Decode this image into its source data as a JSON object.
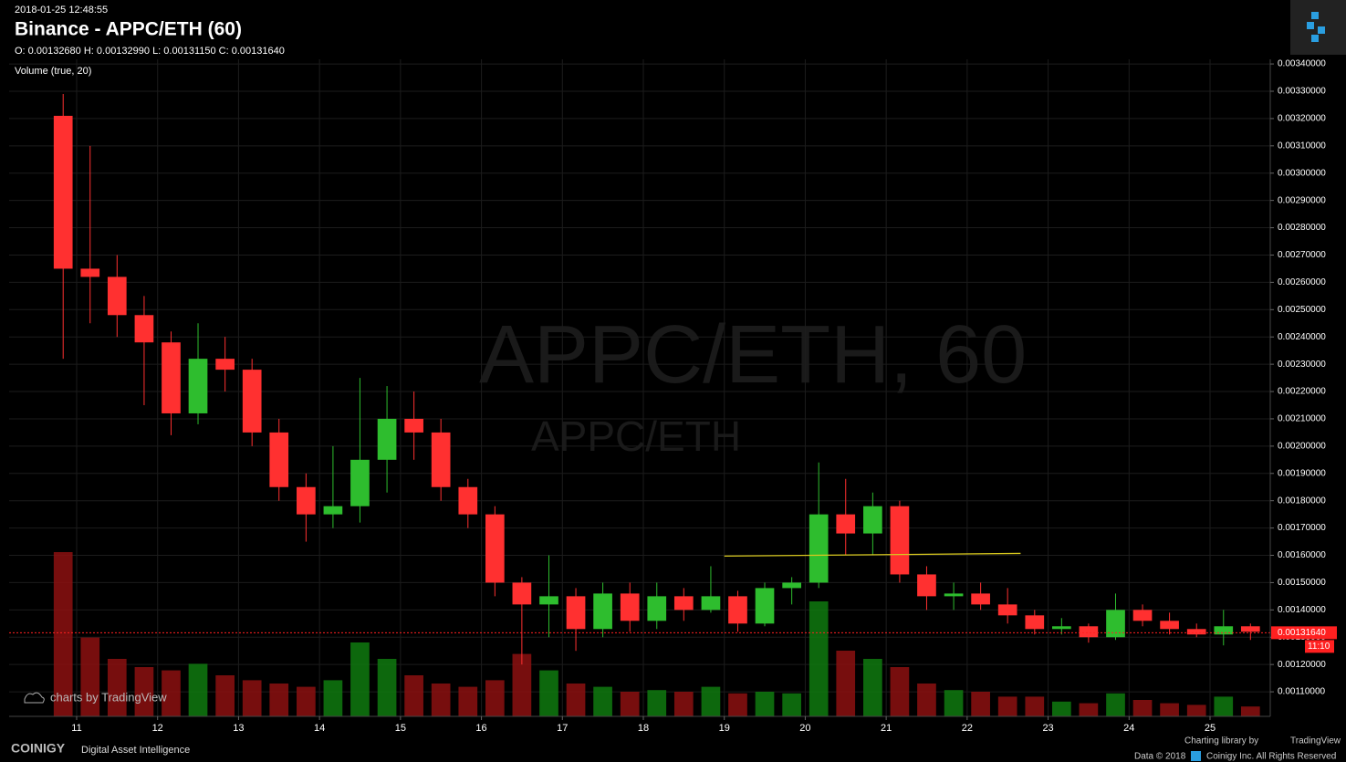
{
  "header": {
    "timestamp": "2018-01-25 12:48:55",
    "title": "Binance - APPC/ETH (60)",
    "ohlc": "O: 0.00132680 H: 0.00132990 L: 0.00131150 C: 0.00131640",
    "volume_label": "Volume (true, 20)"
  },
  "watermark": {
    "main": "APPC/ETH, 60",
    "sub": "APPC/ETH"
  },
  "footer": {
    "tv_badge": "charts by TradingView",
    "brand": "COINIGY",
    "tagline": "Digital Asset Intelligence",
    "charting": "Charting library by",
    "tv": "TradingView",
    "data": "Data © 2018",
    "rights": "Coinigy Inc. All Rights Reserved"
  },
  "chart_data": {
    "type": "candlestick",
    "x": [
      10.667,
      11.0,
      11.333,
      11.667,
      12.0,
      12.333,
      12.667,
      13.0,
      13.333,
      13.667,
      14.0,
      14.333,
      14.667,
      15.0,
      15.333,
      15.667,
      16.0,
      16.333,
      16.667,
      17.0,
      17.333,
      17.667,
      18.0,
      18.333,
      18.667,
      19.0,
      19.333,
      19.667,
      20.0,
      20.333,
      20.667,
      21.0,
      21.333,
      21.667,
      22.0,
      22.333,
      22.667,
      23.0,
      23.333,
      23.667,
      24.0,
      24.333,
      24.667,
      25.0,
      25.333
    ],
    "open": [
      0.00321,
      0.00265,
      0.00262,
      0.00248,
      0.00238,
      0.00212,
      0.00232,
      0.00228,
      0.00205,
      0.00185,
      0.00175,
      0.00178,
      0.00195,
      0.0021,
      0.00205,
      0.00185,
      0.00175,
      0.0015,
      0.00142,
      0.00145,
      0.00133,
      0.00146,
      0.00136,
      0.00145,
      0.0014,
      0.00145,
      0.00135,
      0.00148,
      0.0015,
      0.00175,
      0.00168,
      0.00178,
      0.00153,
      0.00145,
      0.00146,
      0.00142,
      0.00138,
      0.00133,
      0.00134,
      0.0013,
      0.0014,
      0.00136,
      0.00133,
      0.00131,
      0.00134
    ],
    "high": [
      0.00329,
      0.0031,
      0.0027,
      0.00255,
      0.00242,
      0.00245,
      0.0024,
      0.00232,
      0.0021,
      0.0019,
      0.002,
      0.00225,
      0.00222,
      0.0022,
      0.0021,
      0.00188,
      0.00178,
      0.00152,
      0.0016,
      0.00148,
      0.0015,
      0.0015,
      0.0015,
      0.00148,
      0.00156,
      0.00147,
      0.0015,
      0.00152,
      0.00194,
      0.00188,
      0.00183,
      0.0018,
      0.00156,
      0.0015,
      0.0015,
      0.00148,
      0.0014,
      0.00137,
      0.00135,
      0.00146,
      0.00142,
      0.00139,
      0.00135,
      0.0014,
      0.00135
    ],
    "low": [
      0.00232,
      0.00245,
      0.0024,
      0.00215,
      0.00204,
      0.00208,
      0.0022,
      0.002,
      0.0018,
      0.00165,
      0.0017,
      0.00172,
      0.00183,
      0.00195,
      0.0018,
      0.0017,
      0.00145,
      0.0012,
      0.0013,
      0.00125,
      0.0013,
      0.00132,
      0.00133,
      0.00136,
      0.00139,
      0.00132,
      0.00134,
      0.00142,
      0.00148,
      0.0016,
      0.0016,
      0.0015,
      0.0014,
      0.0014,
      0.0014,
      0.00135,
      0.00131,
      0.00131,
      0.00128,
      0.00129,
      0.00134,
      0.00131,
      0.0013,
      0.00127,
      0.00129
    ],
    "close": [
      0.00265,
      0.00262,
      0.00248,
      0.00238,
      0.00212,
      0.00232,
      0.00228,
      0.00205,
      0.00185,
      0.00175,
      0.00178,
      0.00195,
      0.0021,
      0.00205,
      0.00185,
      0.00175,
      0.0015,
      0.00142,
      0.00145,
      0.00133,
      0.00146,
      0.00136,
      0.00145,
      0.0014,
      0.00145,
      0.00135,
      0.00148,
      0.0015,
      0.00175,
      0.00168,
      0.00178,
      0.00153,
      0.00145,
      0.00146,
      0.00142,
      0.00138,
      0.00133,
      0.00134,
      0.0013,
      0.0014,
      0.00136,
      0.00133,
      0.00131,
      0.00134,
      0.00132
    ],
    "volume": [
      100,
      48,
      35,
      30,
      28,
      32,
      25,
      22,
      20,
      18,
      22,
      45,
      35,
      25,
      20,
      18,
      22,
      38,
      28,
      20,
      18,
      15,
      16,
      15,
      18,
      14,
      15,
      14,
      70,
      40,
      35,
      30,
      20,
      16,
      15,
      12,
      12,
      9,
      8,
      14,
      10,
      8,
      7,
      12,
      6
    ],
    "up_color": "#2ebd2e",
    "down_color": "#ff3030",
    "up_volume_color": "#0f7a0f",
    "down_volume_color": "#8c1010",
    "xlim": [
      10.166,
      25.744
    ],
    "xticks": [
      {
        "value": 11,
        "label": "11"
      },
      {
        "value": 12,
        "label": "12"
      },
      {
        "value": 13,
        "label": "13"
      },
      {
        "value": 14,
        "label": "14"
      },
      {
        "value": 15,
        "label": "15"
      },
      {
        "value": 16,
        "label": "16"
      },
      {
        "value": 17,
        "label": "17"
      },
      {
        "value": 18,
        "label": "18"
      },
      {
        "value": 19,
        "label": "19"
      },
      {
        "value": 20,
        "label": "20"
      },
      {
        "value": 21,
        "label": "21"
      },
      {
        "value": 22,
        "label": "22"
      },
      {
        "value": 23,
        "label": "23"
      },
      {
        "value": 24,
        "label": "24"
      },
      {
        "value": 25,
        "label": "25"
      }
    ],
    "ylim": [
      0.00101,
      0.003417
    ],
    "yticks": [
      {
        "value": 0.0011,
        "label": "0.00110000"
      },
      {
        "value": 0.0012,
        "label": "0.00120000"
      },
      {
        "value": 0.0013,
        "label": "0.00130000"
      },
      {
        "value": 0.0014,
        "label": "0.00140000"
      },
      {
        "value": 0.0015,
        "label": "0.00150000"
      },
      {
        "value": 0.0016,
        "label": "0.00160000"
      },
      {
        "value": 0.0017,
        "label": "0.00170000"
      },
      {
        "value": 0.0018,
        "label": "0.00180000"
      },
      {
        "value": 0.0019,
        "label": "0.00190000"
      },
      {
        "value": 0.002,
        "label": "0.00200000"
      },
      {
        "value": 0.0021,
        "label": "0.00210000"
      },
      {
        "value": 0.0022,
        "label": "0.00220000"
      },
      {
        "value": 0.0023,
        "label": "0.00230000"
      },
      {
        "value": 0.0024,
        "label": "0.00240000"
      },
      {
        "value": 0.0025,
        "label": "0.00250000"
      },
      {
        "value": 0.0026,
        "label": "0.00260000"
      },
      {
        "value": 0.0027,
        "label": "0.00270000"
      },
      {
        "value": 0.0028,
        "label": "0.00280000"
      },
      {
        "value": 0.0029,
        "label": "0.00290000"
      },
      {
        "value": 0.003,
        "label": "0.00300000"
      },
      {
        "value": 0.0031,
        "label": "0.00310000"
      },
      {
        "value": 0.0032,
        "label": "0.00320000"
      },
      {
        "value": 0.0033,
        "label": "0.00330000"
      },
      {
        "value": 0.0034,
        "label": "0.00340000"
      }
    ],
    "grid": true,
    "trendline": {
      "x": [
        19.0,
        22.66
      ],
      "y": [
        0.001597,
        0.001607
      ],
      "color": "#d8c81e"
    },
    "last_price": {
      "value": 0.0013164,
      "label": "0.00131640",
      "color": "#ff2020"
    },
    "countdown": "11:10"
  }
}
